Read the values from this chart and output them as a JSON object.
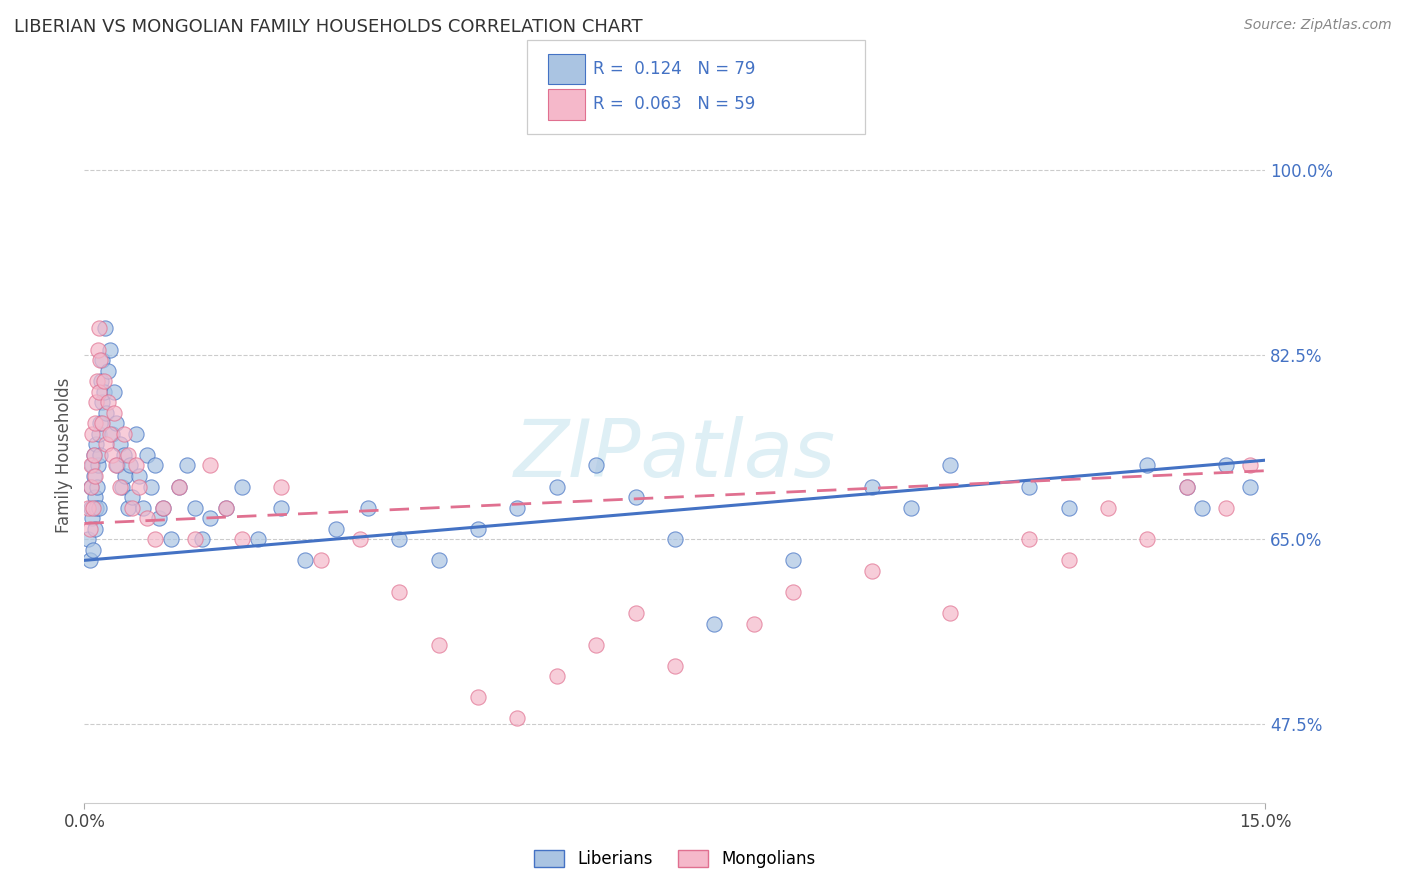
{
  "title": "LIBERIAN VS MONGOLIAN FAMILY HOUSEHOLDS CORRELATION CHART",
  "source": "Source: ZipAtlas.com",
  "ylabel": "Family Households",
  "yticks": [
    47.5,
    65.0,
    82.5,
    100.0
  ],
  "ytick_labels": [
    "47.5%",
    "65.0%",
    "82.5%",
    "100.0%"
  ],
  "xmin": 0.0,
  "xmax": 15.0,
  "ymin": 40.0,
  "ymax": 106.0,
  "liberian_R": 0.124,
  "liberian_N": 79,
  "mongolian_R": 0.063,
  "mongolian_N": 59,
  "liberian_color": "#aac4e2",
  "mongolian_color": "#f5b8ca",
  "liberian_line_color": "#4472c4",
  "mongolian_line_color": "#e07090",
  "watermark": "ZIPatlas",
  "background_color": "#ffffff",
  "liberian_x": [
    0.05,
    0.07,
    0.08,
    0.09,
    0.1,
    0.1,
    0.11,
    0.12,
    0.12,
    0.13,
    0.14,
    0.15,
    0.15,
    0.16,
    0.17,
    0.18,
    0.19,
    0.2,
    0.2,
    0.21,
    0.22,
    0.23,
    0.25,
    0.26,
    0.28,
    0.3,
    0.32,
    0.35,
    0.38,
    0.4,
    0.42,
    0.45,
    0.48,
    0.5,
    0.52,
    0.55,
    0.58,
    0.6,
    0.65,
    0.7,
    0.75,
    0.8,
    0.85,
    0.9,
    0.95,
    1.0,
    1.1,
    1.2,
    1.3,
    1.4,
    1.5,
    1.6,
    1.8,
    2.0,
    2.2,
    2.5,
    2.8,
    3.2,
    3.6,
    4.0,
    4.5,
    5.0,
    5.5,
    6.0,
    6.5,
    7.0,
    7.5,
    8.0,
    9.0,
    10.0,
    10.5,
    11.0,
    12.0,
    12.5,
    13.5,
    14.0,
    14.2,
    14.5,
    14.8
  ],
  "liberian_y": [
    65.0,
    63.0,
    68.0,
    70.0,
    72.0,
    67.0,
    64.0,
    71.0,
    73.0,
    69.0,
    66.0,
    68.0,
    74.0,
    70.0,
    72.0,
    75.0,
    68.0,
    76.0,
    73.0,
    80.0,
    78.0,
    82.0,
    79.0,
    85.0,
    77.0,
    81.0,
    83.0,
    75.0,
    79.0,
    76.0,
    72.0,
    74.0,
    70.0,
    73.0,
    71.0,
    68.0,
    72.0,
    69.0,
    75.0,
    71.0,
    68.0,
    73.0,
    70.0,
    72.0,
    67.0,
    68.0,
    65.0,
    70.0,
    72.0,
    68.0,
    65.0,
    67.0,
    68.0,
    70.0,
    65.0,
    68.0,
    63.0,
    66.0,
    68.0,
    65.0,
    63.0,
    66.0,
    68.0,
    70.0,
    72.0,
    69.0,
    65.0,
    57.0,
    63.0,
    70.0,
    68.0,
    72.0,
    70.0,
    68.0,
    72.0,
    70.0,
    68.0,
    72.0,
    70.0
  ],
  "mongolian_x": [
    0.05,
    0.07,
    0.08,
    0.09,
    0.1,
    0.11,
    0.12,
    0.13,
    0.14,
    0.15,
    0.16,
    0.17,
    0.18,
    0.19,
    0.2,
    0.22,
    0.25,
    0.28,
    0.3,
    0.32,
    0.35,
    0.38,
    0.4,
    0.45,
    0.5,
    0.55,
    0.6,
    0.65,
    0.7,
    0.8,
    0.9,
    1.0,
    1.2,
    1.4,
    1.6,
    1.8,
    2.0,
    2.5,
    3.0,
    3.5,
    4.0,
    4.5,
    5.0,
    5.5,
    6.0,
    6.5,
    7.0,
    7.5,
    8.5,
    9.0,
    10.0,
    11.0,
    12.0,
    12.5,
    13.0,
    13.5,
    14.0,
    14.5,
    14.8
  ],
  "mongolian_y": [
    68.0,
    66.0,
    72.0,
    70.0,
    75.0,
    68.0,
    73.0,
    71.0,
    76.0,
    78.0,
    80.0,
    83.0,
    85.0,
    79.0,
    82.0,
    76.0,
    80.0,
    74.0,
    78.0,
    75.0,
    73.0,
    77.0,
    72.0,
    70.0,
    75.0,
    73.0,
    68.0,
    72.0,
    70.0,
    67.0,
    65.0,
    68.0,
    70.0,
    65.0,
    72.0,
    68.0,
    65.0,
    70.0,
    63.0,
    65.0,
    60.0,
    55.0,
    50.0,
    48.0,
    52.0,
    55.0,
    58.0,
    53.0,
    57.0,
    60.0,
    62.0,
    58.0,
    65.0,
    63.0,
    68.0,
    65.0,
    70.0,
    68.0,
    72.0
  ]
}
